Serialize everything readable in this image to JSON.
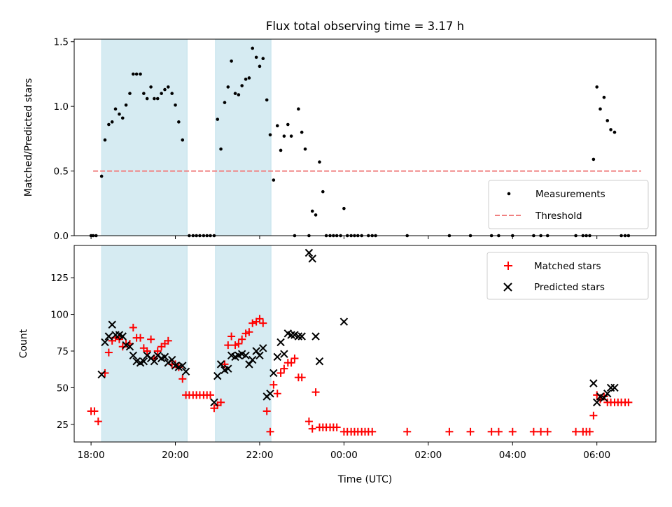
{
  "chart_data": {
    "type": "scatter",
    "title": "Flux total observing time = 3.17 h",
    "xlabel": "Time (UTC)",
    "x_unit": "hours (24 = 00:00 next day)",
    "xlim": [
      17.6,
      31.4
    ],
    "xticks": [
      {
        "value": 18,
        "label": "18:00"
      },
      {
        "value": 20,
        "label": "20:00"
      },
      {
        "value": 22,
        "label": "22:00"
      },
      {
        "value": 24,
        "label": "00:00"
      },
      {
        "value": 26,
        "label": "02:00"
      },
      {
        "value": 28,
        "label": "04:00"
      },
      {
        "value": 30,
        "label": "06:00"
      }
    ],
    "shaded_intervals": [
      [
        18.25,
        20.28
      ],
      [
        20.95,
        22.27
      ]
    ],
    "shade_color": "#add8e6",
    "top": {
      "ylabel": "Matched/Predicted stars",
      "ylim": [
        0,
        1.52
      ],
      "yticks": [
        {
          "value": 0,
          "label": "0.0"
        },
        {
          "value": 0.5,
          "label": "0.5"
        },
        {
          "value": 1.0,
          "label": "1.0"
        },
        {
          "value": 1.5,
          "label": "1.5"
        }
      ],
      "threshold": {
        "value": 0.5,
        "x_range": [
          18.05,
          31.05
        ],
        "color": "#f08080"
      },
      "legend": {
        "position": "lower right",
        "entries": [
          "Measurements",
          "Threshold"
        ]
      },
      "measurements": [
        [
          18.0,
          0
        ],
        [
          18.05,
          0
        ],
        [
          18.12,
          0
        ],
        [
          18.25,
          0.46
        ],
        [
          18.33,
          0.74
        ],
        [
          18.42,
          0.86
        ],
        [
          18.5,
          0.88
        ],
        [
          18.58,
          0.98
        ],
        [
          18.67,
          0.94
        ],
        [
          18.75,
          0.91
        ],
        [
          18.83,
          1.01
        ],
        [
          18.92,
          1.1
        ],
        [
          19.0,
          1.25
        ],
        [
          19.08,
          1.25
        ],
        [
          19.17,
          1.25
        ],
        [
          19.25,
          1.1
        ],
        [
          19.33,
          1.06
        ],
        [
          19.42,
          1.15
        ],
        [
          19.5,
          1.06
        ],
        [
          19.58,
          1.06
        ],
        [
          19.67,
          1.1
        ],
        [
          19.75,
          1.13
        ],
        [
          19.83,
          1.15
        ],
        [
          19.92,
          1.1
        ],
        [
          20.0,
          1.01
        ],
        [
          20.08,
          0.88
        ],
        [
          20.17,
          0.74
        ],
        [
          20.33,
          0
        ],
        [
          20.42,
          0
        ],
        [
          20.5,
          0
        ],
        [
          20.58,
          0
        ],
        [
          20.67,
          0
        ],
        [
          20.75,
          0
        ],
        [
          20.83,
          0
        ],
        [
          20.92,
          0
        ],
        [
          21.0,
          0.9
        ],
        [
          21.08,
          0.67
        ],
        [
          21.17,
          1.03
        ],
        [
          21.25,
          1.15
        ],
        [
          21.33,
          1.35
        ],
        [
          21.42,
          1.1
        ],
        [
          21.5,
          1.09
        ],
        [
          21.58,
          1.16
        ],
        [
          21.67,
          1.21
        ],
        [
          21.75,
          1.22
        ],
        [
          21.83,
          1.45
        ],
        [
          21.92,
          1.38
        ],
        [
          22.0,
          1.31
        ],
        [
          22.08,
          1.37
        ],
        [
          22.17,
          1.05
        ],
        [
          22.25,
          0.78
        ],
        [
          22.33,
          0.43
        ],
        [
          22.42,
          0.85
        ],
        [
          22.5,
          0.66
        ],
        [
          22.58,
          0.77
        ],
        [
          22.67,
          0.86
        ],
        [
          22.75,
          0.77
        ],
        [
          22.83,
          0
        ],
        [
          22.92,
          0.98
        ],
        [
          23.0,
          0.8
        ],
        [
          23.08,
          0.67
        ],
        [
          23.17,
          0
        ],
        [
          23.25,
          0.19
        ],
        [
          23.33,
          0.16
        ],
        [
          23.42,
          0.57
        ],
        [
          23.5,
          0.34
        ],
        [
          23.58,
          0
        ],
        [
          23.67,
          0
        ],
        [
          23.75,
          0
        ],
        [
          23.83,
          0
        ],
        [
          23.92,
          0
        ],
        [
          24.0,
          0.21
        ],
        [
          24.08,
          0
        ],
        [
          24.17,
          0
        ],
        [
          24.25,
          0
        ],
        [
          24.33,
          0
        ],
        [
          24.42,
          0
        ],
        [
          24.58,
          0
        ],
        [
          24.67,
          0
        ],
        [
          24.75,
          0
        ],
        [
          25.5,
          0
        ],
        [
          26.5,
          0
        ],
        [
          27.0,
          0
        ],
        [
          27.5,
          0
        ],
        [
          27.67,
          0
        ],
        [
          28.0,
          0
        ],
        [
          28.5,
          0
        ],
        [
          28.67,
          0
        ],
        [
          28.83,
          0
        ],
        [
          29.5,
          0
        ],
        [
          29.67,
          0
        ],
        [
          29.75,
          0
        ],
        [
          29.83,
          0
        ],
        [
          29.92,
          0.59
        ],
        [
          30.0,
          1.15
        ],
        [
          30.08,
          0.98
        ],
        [
          30.17,
          1.07
        ],
        [
          30.25,
          0.89
        ],
        [
          30.33,
          0.82
        ],
        [
          30.42,
          0.8
        ],
        [
          30.58,
          0
        ],
        [
          30.67,
          0
        ],
        [
          30.75,
          0
        ]
      ]
    },
    "bottom": {
      "ylabel": "Count",
      "ylim": [
        13,
        147
      ],
      "yticks": [
        {
          "value": 25,
          "label": "25"
        },
        {
          "value": 50,
          "label": "50"
        },
        {
          "value": 75,
          "label": "75"
        },
        {
          "value": 100,
          "label": "100"
        },
        {
          "value": 125,
          "label": "125"
        }
      ],
      "legend": {
        "position": "upper right",
        "entries": [
          "Matched stars",
          "Predicted stars"
        ]
      },
      "series": [
        {
          "name": "Matched stars",
          "marker": "+",
          "color": "#ff0000",
          "points": [
            [
              18.0,
              34
            ],
            [
              18.08,
              34
            ],
            [
              18.17,
              27
            ],
            [
              18.33,
              60
            ],
            [
              18.42,
              74
            ],
            [
              18.5,
              82
            ],
            [
              18.58,
              84
            ],
            [
              18.67,
              83
            ],
            [
              18.75,
              78
            ],
            [
              18.83,
              80
            ],
            [
              18.92,
              80
            ],
            [
              19.0,
              91
            ],
            [
              19.08,
              84
            ],
            [
              19.17,
              84
            ],
            [
              19.25,
              77
            ],
            [
              19.33,
              75
            ],
            [
              19.42,
              83
            ],
            [
              19.5,
              70
            ],
            [
              19.58,
              75
            ],
            [
              19.67,
              78
            ],
            [
              19.75,
              80
            ],
            [
              19.83,
              82
            ],
            [
              19.92,
              66
            ],
            [
              20.0,
              66
            ],
            [
              20.08,
              64
            ],
            [
              20.17,
              56
            ],
            [
              20.25,
              45
            ],
            [
              20.33,
              45
            ],
            [
              20.42,
              45
            ],
            [
              20.5,
              45
            ],
            [
              20.58,
              45
            ],
            [
              20.67,
              45
            ],
            [
              20.75,
              45
            ],
            [
              20.83,
              45
            ],
            [
              20.92,
              36
            ],
            [
              21.0,
              38
            ],
            [
              21.08,
              40
            ],
            [
              21.17,
              66
            ],
            [
              21.25,
              79
            ],
            [
              21.33,
              85
            ],
            [
              21.42,
              79
            ],
            [
              21.5,
              80
            ],
            [
              21.58,
              83
            ],
            [
              21.67,
              87
            ],
            [
              21.75,
              88
            ],
            [
              21.83,
              94
            ],
            [
              21.92,
              95
            ],
            [
              22.0,
              97
            ],
            [
              22.08,
              94
            ],
            [
              22.17,
              34
            ],
            [
              22.25,
              20
            ],
            [
              22.33,
              52
            ],
            [
              22.42,
              46
            ],
            [
              22.5,
              60
            ],
            [
              22.58,
              63
            ],
            [
              22.67,
              67
            ],
            [
              22.75,
              67
            ],
            [
              22.83,
              70
            ],
            [
              22.92,
              57
            ],
            [
              23.0,
              57
            ],
            [
              23.17,
              27
            ],
            [
              23.25,
              22
            ],
            [
              23.33,
              47
            ],
            [
              23.42,
              23
            ],
            [
              23.5,
              23
            ],
            [
              23.58,
              23
            ],
            [
              23.67,
              23
            ],
            [
              23.75,
              23
            ],
            [
              23.83,
              23
            ],
            [
              24.0,
              20
            ],
            [
              24.08,
              20
            ],
            [
              24.17,
              20
            ],
            [
              24.25,
              20
            ],
            [
              24.33,
              20
            ],
            [
              24.42,
              20
            ],
            [
              24.5,
              20
            ],
            [
              24.58,
              20
            ],
            [
              24.67,
              20
            ],
            [
              25.5,
              20
            ],
            [
              26.5,
              20
            ],
            [
              27.0,
              20
            ],
            [
              27.5,
              20
            ],
            [
              27.67,
              20
            ],
            [
              28.0,
              20
            ],
            [
              28.5,
              20
            ],
            [
              28.67,
              20
            ],
            [
              28.83,
              20
            ],
            [
              29.5,
              20
            ],
            [
              29.67,
              20
            ],
            [
              29.75,
              20
            ],
            [
              29.83,
              20
            ],
            [
              29.92,
              31
            ],
            [
              30.0,
              45
            ],
            [
              30.08,
              42
            ],
            [
              30.17,
              44
            ],
            [
              30.25,
              40
            ],
            [
              30.33,
              40
            ],
            [
              30.42,
              40
            ],
            [
              30.5,
              40
            ],
            [
              30.58,
              40
            ],
            [
              30.67,
              40
            ],
            [
              30.75,
              40
            ]
          ]
        },
        {
          "name": "Predicted stars",
          "marker": "x",
          "color": "#000000",
          "points": [
            [
              18.25,
              59
            ],
            [
              18.33,
              81
            ],
            [
              18.42,
              85
            ],
            [
              18.5,
              93
            ],
            [
              18.58,
              86
            ],
            [
              18.67,
              86
            ],
            [
              18.75,
              85
            ],
            [
              18.83,
              79
            ],
            [
              18.92,
              78
            ],
            [
              19.0,
              72
            ],
            [
              19.08,
              68
            ],
            [
              19.17,
              67
            ],
            [
              19.25,
              68
            ],
            [
              19.33,
              72
            ],
            [
              19.42,
              70
            ],
            [
              19.5,
              68
            ],
            [
              19.58,
              72
            ],
            [
              19.67,
              70
            ],
            [
              19.75,
              71
            ],
            [
              19.83,
              67
            ],
            [
              19.92,
              69
            ],
            [
              20.0,
              65
            ],
            [
              20.08,
              64
            ],
            [
              20.17,
              65
            ],
            [
              20.25,
              61
            ],
            [
              20.92,
              40
            ],
            [
              21.0,
              58
            ],
            [
              21.08,
              66
            ],
            [
              21.17,
              62
            ],
            [
              21.25,
              63
            ],
            [
              21.33,
              72
            ],
            [
              21.42,
              71
            ],
            [
              21.5,
              72
            ],
            [
              21.58,
              73
            ],
            [
              21.67,
              72
            ],
            [
              21.75,
              66
            ],
            [
              21.83,
              69
            ],
            [
              21.92,
              75
            ],
            [
              22.0,
              72
            ],
            [
              22.08,
              77
            ],
            [
              22.17,
              44
            ],
            [
              22.25,
              46
            ],
            [
              22.33,
              60
            ],
            [
              22.42,
              71
            ],
            [
              22.5,
              81
            ],
            [
              22.58,
              73
            ],
            [
              22.67,
              87
            ],
            [
              22.75,
              86
            ],
            [
              22.83,
              86
            ],
            [
              22.92,
              85
            ],
            [
              23.0,
              85
            ],
            [
              23.17,
              142
            ],
            [
              23.25,
              138
            ],
            [
              23.33,
              85
            ],
            [
              23.42,
              68
            ],
            [
              24.0,
              95
            ],
            [
              29.92,
              53
            ],
            [
              30.0,
              40
            ],
            [
              30.08,
              44
            ],
            [
              30.17,
              43
            ],
            [
              30.25,
              46
            ],
            [
              30.33,
              50
            ],
            [
              30.42,
              50
            ]
          ]
        }
      ]
    }
  }
}
